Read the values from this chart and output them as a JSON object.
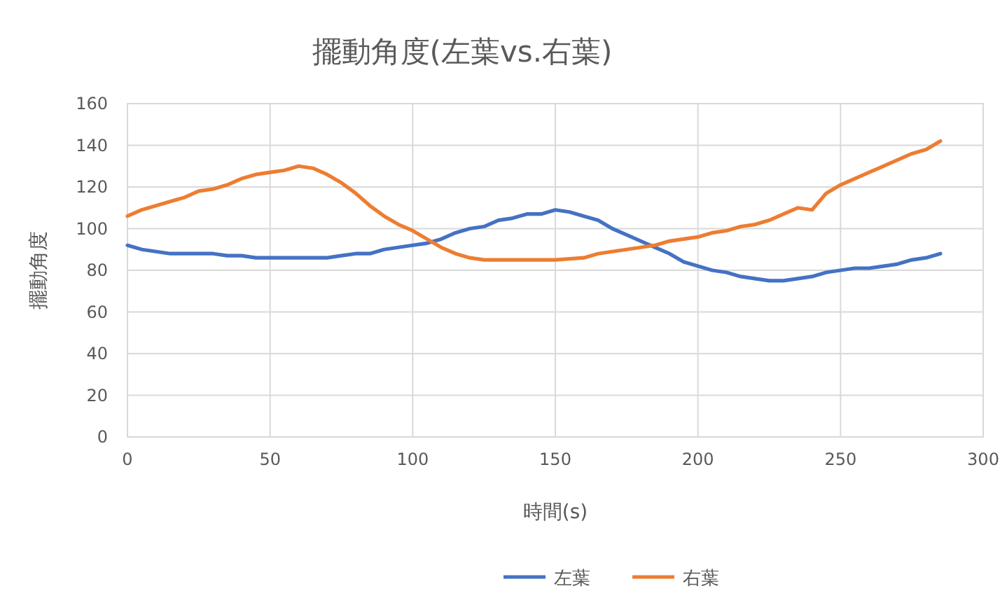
{
  "chart_data": {
    "type": "line",
    "title": "擺動角度(左葉vs.右葉)",
    "xlabel": "時間(s)",
    "ylabel": "擺動角度",
    "xlim": [
      0,
      300
    ],
    "xticks": [
      0,
      50,
      100,
      150,
      200,
      250,
      300
    ],
    "ylim": [
      0,
      160
    ],
    "yticks": [
      0,
      20,
      40,
      60,
      80,
      100,
      120,
      140,
      160
    ],
    "grid": true,
    "legend": "bottom",
    "marker": "none",
    "line_style": "solid",
    "series": [
      {
        "name": "左葉",
        "color": "#4472c4",
        "x": [
          0,
          5,
          10,
          15,
          20,
          30,
          35,
          40,
          45,
          50,
          60,
          65,
          70,
          75,
          80,
          85,
          90,
          100,
          105,
          110,
          115,
          120,
          125,
          130,
          135,
          140,
          145,
          150,
          155,
          160,
          165,
          170,
          175,
          180,
          185,
          190,
          195,
          200,
          205,
          210,
          215,
          220,
          225,
          230,
          235,
          240,
          245,
          250,
          255,
          260,
          265,
          270,
          275,
          280,
          285
        ],
        "values": [
          92,
          90,
          89,
          88,
          88,
          88,
          87,
          87,
          86,
          86,
          86,
          86,
          86,
          87,
          88,
          88,
          90,
          92,
          93,
          95,
          98,
          100,
          101,
          104,
          105,
          107,
          107,
          109,
          108,
          106,
          104,
          100,
          97,
          94,
          91,
          88,
          84,
          82,
          80,
          79,
          77,
          76,
          75,
          75,
          76,
          77,
          79,
          80,
          81,
          81,
          82,
          83,
          85,
          86,
          88
        ]
      },
      {
        "name": "右葉",
        "color": "#ed7d31",
        "x": [
          0,
          5,
          10,
          15,
          20,
          25,
          30,
          35,
          40,
          45,
          50,
          55,
          60,
          65,
          70,
          75,
          80,
          85,
          90,
          95,
          100,
          105,
          110,
          115,
          120,
          125,
          130,
          140,
          150,
          160,
          165,
          170,
          175,
          180,
          185,
          190,
          195,
          200,
          205,
          210,
          215,
          220,
          225,
          230,
          235,
          240,
          245,
          250,
          255,
          260,
          265,
          270,
          275,
          280,
          285
        ],
        "values": [
          106,
          109,
          111,
          113,
          115,
          118,
          119,
          121,
          124,
          126,
          127,
          128,
          130,
          129,
          126,
          122,
          117,
          111,
          106,
          102,
          99,
          95,
          91,
          88,
          86,
          85,
          85,
          85,
          85,
          86,
          88,
          89,
          90,
          91,
          92,
          94,
          95,
          96,
          98,
          99,
          101,
          102,
          104,
          107,
          110,
          109,
          117,
          121,
          124,
          127,
          130,
          133,
          136,
          138,
          142
        ]
      }
    ]
  }
}
